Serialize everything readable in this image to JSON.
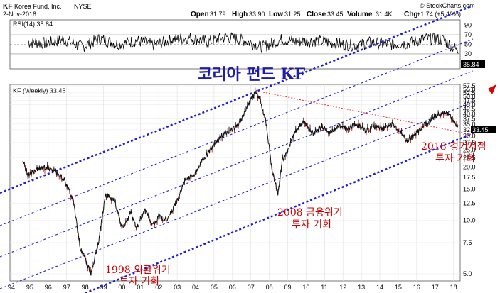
{
  "header": {
    "symbol": "KF",
    "company": "Korea Fund, Inc.",
    "exchange": "NYSE",
    "date": "2-Nov-2018",
    "open_label": "Open",
    "open": "31.79",
    "high_label": "High",
    "high": "33.90",
    "low_label": "Low",
    "low": "31.25",
    "close_label": "Close",
    "close": "33.45",
    "volume_label": "Volume",
    "volume": "31.4K",
    "chg_label": "Chg",
    "chg": "+1.74 (+5.49%)",
    "watermark": "© StockCharts.com"
  },
  "rsi_panel": {
    "label": "RSI(14) 35.84",
    "ticks": [
      "90",
      "70",
      "50",
      "30",
      "10"
    ],
    "current_value_label": "35.84"
  },
  "price_panel": {
    "label": "KF (Weekly) 33.45",
    "current_price_label": "33.45",
    "ticks": [
      "57.5",
      "55.0",
      "52.5",
      "50.0",
      "47.5",
      "45.0",
      "42.5",
      "40.0",
      "37.5",
      "35.0",
      "32.5",
      "30.0",
      "27.5",
      "25.0",
      "22.5",
      "20.0",
      "17.5",
      "15.0",
      "12.5",
      "10.0",
      "7.5",
      "5.0"
    ]
  },
  "annotations": {
    "title": "코리아 펀드 KF",
    "note_1998_line1": "1998 외환위기",
    "note_1998_line2": "투자 기회",
    "note_2008_line1": "2008 금융위기",
    "note_2008_line2": "투자 기회",
    "note_2018_line1": "2018 경기저점",
    "note_2018_line2": "투자 기회"
  },
  "x_axis": {
    "labels": [
      "94",
      "95",
      "96",
      "97",
      "98",
      "99",
      "00",
      "01",
      "02",
      "03",
      "04",
      "05",
      "06",
      "07",
      "08",
      "09",
      "10",
      "11",
      "12",
      "13",
      "14",
      "15",
      "16",
      "17",
      "18"
    ]
  },
  "colors": {
    "price_up": "#000000",
    "price_down": "#cc0000",
    "channel_line": "#2020cc",
    "trend_line": "#dd3333",
    "annotation": "#cc0000",
    "title": "#1d1daa"
  },
  "chart_data": [
    {
      "type": "line",
      "title": "RSI(14) 35.84",
      "x": [
        1995.0,
        1996.0,
        1997.0,
        1998.0,
        1999.0,
        2000.0,
        2001.0,
        2002.0,
        2003.0,
        2004.0,
        2005.0,
        2006.0,
        2007.0,
        2008.0,
        2009.0,
        2010.0,
        2011.0,
        2012.0,
        2013.0,
        2014.0,
        2015.0,
        2016.0,
        2017.0,
        2018.0,
        2018.84
      ],
      "series": [
        {
          "values": [
            55,
            52,
            60,
            45,
            62,
            50,
            58,
            48,
            60,
            64,
            55,
            66,
            58,
            44,
            60,
            56,
            58,
            52,
            48,
            54,
            50,
            52,
            62,
            60,
            36
          ]
        }
      ],
      "ylim": [
        0,
        100
      ],
      "reference_lines": [
        70,
        50,
        30
      ]
    },
    {
      "type": "line",
      "title": "KF (Weekly) 33.45",
      "y_scale": "log",
      "ylim": [
        4.6,
        58
      ],
      "x": [
        1994.7,
        1995.0,
        1995.5,
        1996.0,
        1996.5,
        1997.0,
        1997.5,
        1997.9,
        1998.2,
        1998.5,
        1998.9,
        1999.3,
        1999.8,
        2000.2,
        2000.7,
        2001.0,
        2001.5,
        2001.9,
        2002.3,
        2002.7,
        2003.2,
        2003.7,
        2004.2,
        2004.7,
        2005.2,
        2005.7,
        2006.2,
        2006.7,
        2007.2,
        2007.6,
        2007.9,
        2008.2,
        2008.5,
        2008.85,
        2009.1,
        2009.4,
        2009.8,
        2010.3,
        2010.8,
        2011.3,
        2011.7,
        2012.2,
        2012.7,
        2013.2,
        2013.7,
        2014.2,
        2014.7,
        2015.2,
        2015.7,
        2016.0,
        2016.5,
        2017.0,
        2017.5,
        2018.0,
        2018.4,
        2018.7,
        2018.84
      ],
      "series": [
        {
          "values": [
            22.0,
            18.0,
            19.5,
            20.0,
            19.0,
            17.0,
            13.0,
            7.0,
            6.0,
            5.0,
            7.5,
            14.0,
            13.0,
            9.0,
            11.0,
            9.0,
            11.5,
            9.5,
            10.5,
            10.0,
            12.5,
            17.0,
            18.0,
            22.0,
            26.0,
            30.0,
            32.0,
            35.0,
            45.0,
            53.0,
            47.0,
            35.0,
            20.0,
            14.0,
            22.0,
            25.0,
            32.0,
            36.0,
            31.0,
            34.0,
            31.0,
            34.0,
            33.0,
            35.0,
            32.0,
            34.0,
            33.0,
            35.0,
            31.0,
            28.0,
            31.0,
            35.0,
            38.0,
            41.0,
            39.0,
            35.0,
            33.45
          ]
        }
      ]
    }
  ]
}
